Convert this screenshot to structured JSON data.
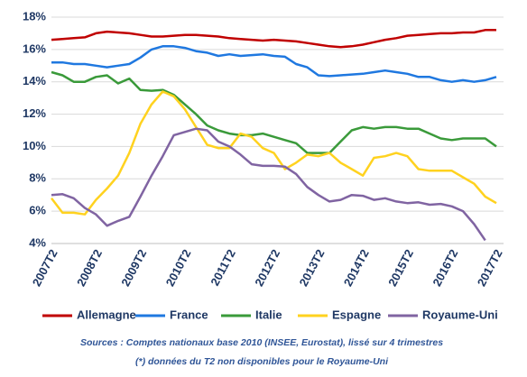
{
  "chart_data": {
    "type": "line",
    "categories": [
      "2007T2",
      null,
      null,
      null,
      "2008T2",
      null,
      null,
      null,
      "2009T2",
      null,
      null,
      null,
      "2010T2",
      null,
      null,
      null,
      "2011T2",
      null,
      null,
      null,
      "2012T2",
      null,
      null,
      null,
      "2013T2",
      null,
      null,
      null,
      "2014T2",
      null,
      null,
      null,
      "2015T2",
      null,
      null,
      null,
      "2016T2",
      null,
      null,
      null,
      "2017T2"
    ],
    "series": [
      {
        "name": "Allemagne",
        "color": "#c00000",
        "values": [
          16.6,
          16.65,
          16.7,
          16.75,
          17.0,
          17.1,
          17.05,
          17.0,
          16.9,
          16.8,
          16.8,
          16.85,
          16.9,
          16.9,
          16.85,
          16.8,
          16.7,
          16.65,
          16.6,
          16.55,
          16.6,
          16.55,
          16.5,
          16.4,
          16.3,
          16.2,
          16.15,
          16.2,
          16.3,
          16.45,
          16.6,
          16.7,
          16.85,
          16.9,
          16.95,
          17.0,
          17.0,
          17.05,
          17.05,
          17.2,
          17.2
        ]
      },
      {
        "name": "France",
        "color": "#1f78e0",
        "values": [
          15.2,
          15.2,
          15.1,
          15.1,
          15.0,
          14.9,
          15.0,
          15.1,
          15.5,
          16.0,
          16.2,
          16.2,
          16.1,
          15.9,
          15.8,
          15.6,
          15.7,
          15.6,
          15.65,
          15.7,
          15.6,
          15.55,
          15.1,
          14.9,
          14.4,
          14.35,
          14.4,
          14.45,
          14.5,
          14.6,
          14.7,
          14.6,
          14.5,
          14.3,
          14.3,
          14.1,
          14.0,
          14.1,
          14.0,
          14.1,
          14.3
        ]
      },
      {
        "name": "Italie",
        "color": "#3a9a3a",
        "values": [
          14.6,
          14.4,
          14.0,
          14.0,
          14.3,
          14.4,
          13.9,
          14.2,
          13.5,
          13.45,
          13.5,
          13.2,
          12.6,
          12.0,
          11.3,
          11.0,
          10.8,
          10.7,
          10.7,
          10.8,
          10.6,
          10.4,
          10.2,
          9.6,
          9.6,
          9.6,
          10.3,
          11.0,
          11.2,
          11.1,
          11.2,
          11.2,
          11.1,
          11.1,
          10.8,
          10.5,
          10.4,
          10.5,
          10.5,
          10.5,
          10.0
        ]
      },
      {
        "name": "Espagne",
        "color": "#ffd21f",
        "values": [
          6.8,
          5.9,
          5.9,
          5.8,
          6.7,
          7.4,
          8.2,
          9.6,
          11.4,
          12.6,
          13.4,
          13.1,
          12.3,
          11.2,
          10.1,
          9.9,
          9.9,
          10.8,
          10.6,
          9.9,
          9.6,
          8.6,
          9.0,
          9.5,
          9.4,
          9.6,
          9.0,
          8.6,
          8.2,
          9.3,
          9.4,
          9.6,
          9.4,
          8.6,
          8.5,
          8.5,
          8.5,
          8.1,
          7.7,
          6.9,
          6.5
        ]
      },
      {
        "name": "Royaume-Uni",
        "color": "#8064a2",
        "values": [
          7.0,
          7.05,
          6.8,
          6.2,
          5.8,
          5.1,
          5.4,
          5.65,
          6.9,
          8.2,
          9.4,
          10.7,
          10.9,
          11.1,
          11.0,
          10.3,
          10.0,
          9.5,
          8.9,
          8.8,
          8.8,
          8.75,
          8.3,
          7.5,
          7.0,
          6.6,
          6.7,
          7.0,
          6.95,
          6.7,
          6.8,
          6.6,
          6.5,
          6.55,
          6.4,
          6.45,
          6.3,
          6.0,
          5.2,
          4.2,
          null
        ]
      }
    ],
    "ylim": [
      4,
      18
    ],
    "yticks": [
      {
        "value": 4,
        "label": "4%"
      },
      {
        "value": 6,
        "label": "6%"
      },
      {
        "value": 8,
        "label": "8%"
      },
      {
        "value": 10,
        "label": "10%"
      },
      {
        "value": 12,
        "label": "12%"
      },
      {
        "value": 14,
        "label": "14%"
      },
      {
        "value": 16,
        "label": "16%"
      },
      {
        "value": 18,
        "label": "18%"
      }
    ],
    "grid": true,
    "legend": "bottom",
    "notes": [
      "Sources : Comptes nationaux base 2010  (INSEE, Eurostat), lissé sur 4 trimestres",
      "(*) données du T2 non disponibles pour le Royaume-Uni"
    ]
  }
}
